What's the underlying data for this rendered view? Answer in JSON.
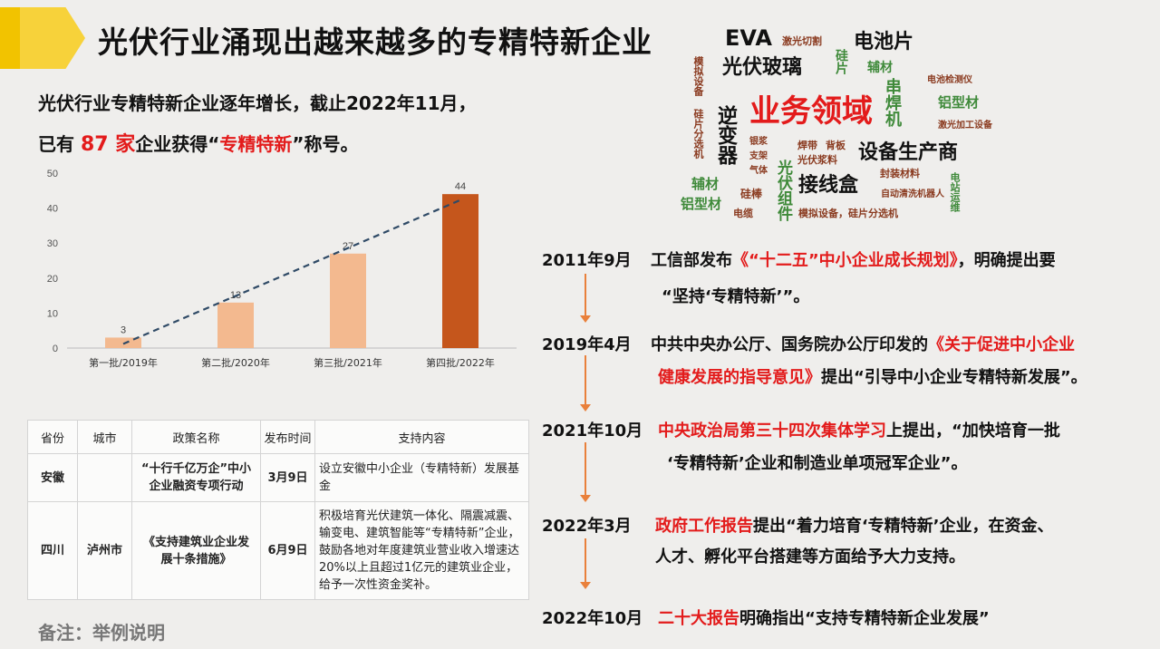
{
  "title": "光伏行业涌现出越来越多的专精特新企业",
  "intro": {
    "line1": "光伏行业专精特新企业逐年增长，截止2022年11月，",
    "line2_prefix": "已有 ",
    "count": "87 家",
    "line2_mid": "企业获得“",
    "highlight": "专精特新",
    "line2_suffix": "”称号。"
  },
  "chart_data": {
    "type": "bar",
    "categories": [
      "第一批/2019年",
      "第二批/2020年",
      "第三批/2021年",
      "第四批/2022年"
    ],
    "values": [
      3,
      13,
      27,
      44
    ],
    "yticks": [
      0,
      10,
      20,
      30,
      40,
      50
    ],
    "ylim": [
      0,
      50
    ],
    "trendline": "dashed",
    "colors": {
      "bar": "#f3b98f",
      "bar_last": "#c5561c",
      "trend": "#2f4a66"
    }
  },
  "table": {
    "headers": [
      "省份",
      "城市",
      "政策名称",
      "发布时间",
      "支持内容"
    ],
    "rows": [
      {
        "province": "安徽",
        "city": "",
        "policy": "“十行千亿万企”中小企业融资专项行动",
        "date": "3月9日",
        "content": "设立安徽中小企业（专精特新）发展基金"
      },
      {
        "province": "四川",
        "city": "泸州市",
        "policy": "《支持建筑业企业发展十条措施》",
        "date": "6月9日",
        "content": "积极培育光伏建筑一体化、隔震减震、输变电、建筑智能等“专精特新”企业，鼓励各地对年度建筑业营业收入增速达20%以上且超过1亿元的建筑业企业，给予一次性资金奖补。"
      }
    ]
  },
  "note": "备注：举例说明",
  "word_cloud": {
    "center": "业务领域",
    "words": [
      "EVA",
      "激光切割",
      "电池片",
      "光伏玻璃",
      "硅片",
      "辅材",
      "电池检测仪",
      "模拟设备",
      "硅片分选机",
      "串焊机",
      "铝型材",
      "激光加工设备",
      "逆变器",
      "银浆",
      "支架",
      "气体",
      "焊带",
      "背板",
      "光伏浆料",
      "设备生产商",
      "封装材料",
      "电站运维",
      "辅材",
      "光伏组件",
      "接线盒",
      "自动清洗机器人",
      "铝型材",
      "硅棒",
      "电缆",
      "模拟设备，硅片分选机"
    ]
  },
  "timeline": [
    {
      "date": "2011年9月",
      "pre": "工信部发布",
      "red": "《“十二五”中小企业成长规划》",
      "post": "，明确提出要",
      "line2": "“坚持‘专精特新’”。"
    },
    {
      "date": "2019年4月",
      "pre": "中共中央办公厅、国务院办公厅印发的",
      "red": "《关于促进中小企业",
      "post": "",
      "line2_red": "健康发展的指导意见》",
      "line2": "提出“引导中小企业专精特新发展”。"
    },
    {
      "date": "2021年10月",
      "pre": "",
      "red": "中央政治局第三十四次集体学习",
      "post": "上提出，“加快培育一批",
      "line2": "‘专精特新’企业和制造业单项冠军企业”。"
    },
    {
      "date": "2022年3月",
      "pre": "",
      "red": "政府工作报告",
      "post": "提出“着力培育‘专精特新’企业，在资金、",
      "line2": "人才、孵化平台搭建等方面给予大力支持。"
    },
    {
      "date": "2022年10月",
      "pre": "",
      "red": "二十大报告",
      "post": "明确指出“支持专精特新企业发展”",
      "line2": ""
    }
  ]
}
